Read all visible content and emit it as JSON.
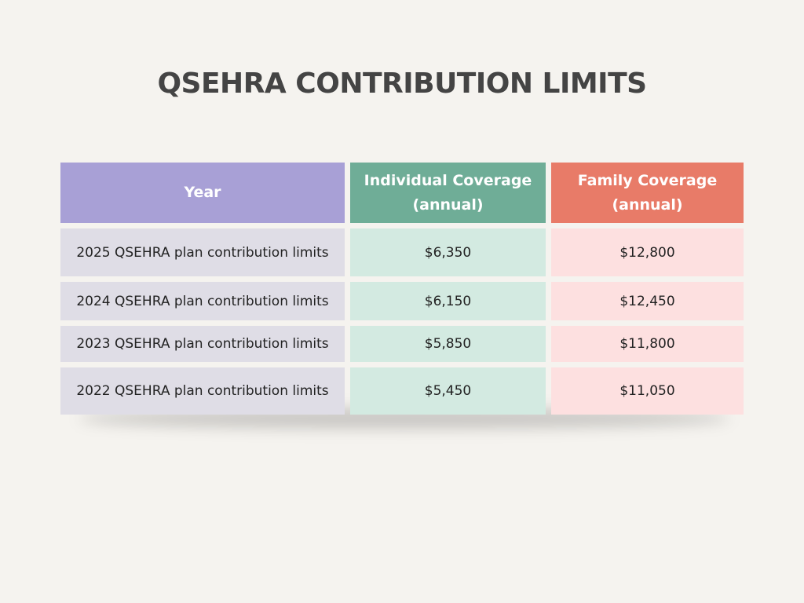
{
  "title": "QSEHRA CONTRIBUTION LIMITS",
  "table": {
    "headers": [
      {
        "line1": "Year",
        "line2": ""
      },
      {
        "line1": "Individual Coverage",
        "line2": "(annual)"
      },
      {
        "line1": "Family Coverage",
        "line2": "(annual)"
      }
    ],
    "rows": [
      {
        "label": "2025 QSEHRA plan contribution limits",
        "individual": "$6,350",
        "family": "$12,800"
      },
      {
        "label": "2024 QSEHRA plan contribution limits",
        "individual": "$6,150",
        "family": "$12,450"
      },
      {
        "label": "2023 QSEHRA plan contribution limits",
        "individual": "$5,850",
        "family": "$11,800"
      },
      {
        "label": "2022 QSEHRA plan contribution limits",
        "individual": "$5,450",
        "family": "$11,050"
      }
    ]
  },
  "colors": {
    "background": "#f5f3ef",
    "title": "#444444",
    "year_header": "#a8a0d6",
    "individual_header": "#6fad97",
    "family_header": "#e87b68",
    "year_cell": "#dfdde6",
    "individual_cell": "#d3eae1",
    "family_cell": "#fde0e0"
  }
}
